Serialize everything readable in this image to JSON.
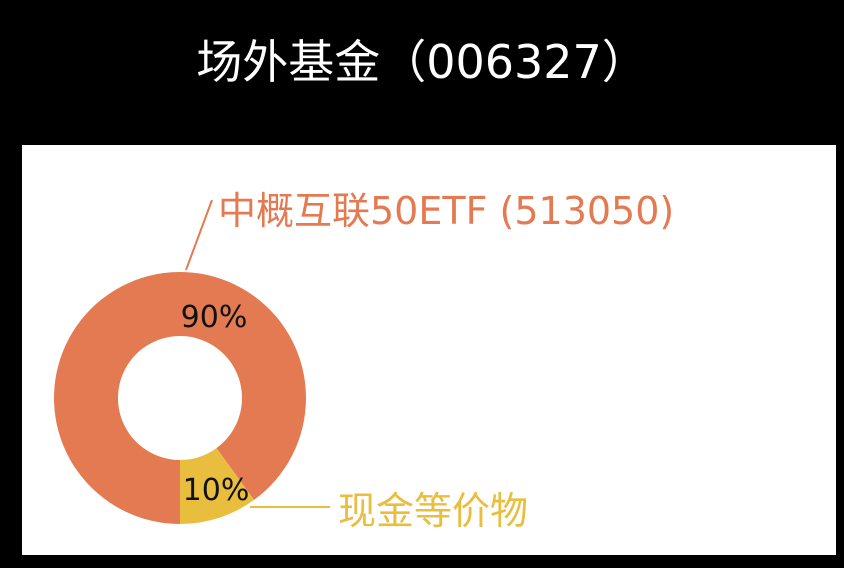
{
  "title": "场外基金（006327）",
  "colors": {
    "background": "#000000",
    "panel": "#ffffff",
    "title": "#ffffff",
    "series_colors": [
      "#E37A52",
      "#E9BE3E"
    ]
  },
  "chart_data": {
    "type": "pie",
    "variant": "donut",
    "categories": [
      "中概互联50ETF (513050)",
      "现金等价物"
    ],
    "values": [
      90,
      10
    ],
    "data_labels": [
      "90%",
      "10%"
    ],
    "legend": "none"
  }
}
